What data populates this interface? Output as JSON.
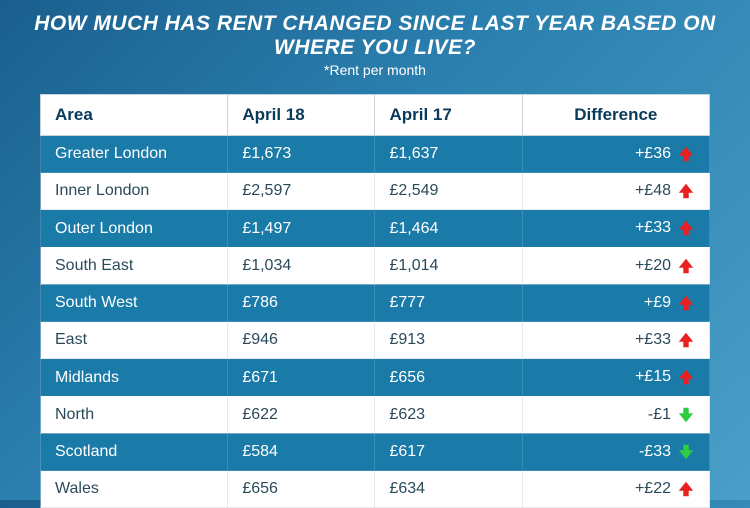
{
  "header": {
    "title": "HOW MUCH HAS RENT CHANGED SINCE LAST YEAR BASED ON WHERE YOU LIVE?",
    "subtitle": "*Rent per month"
  },
  "table": {
    "columns": [
      "Area",
      "April 18",
      "April 17",
      "Difference"
    ],
    "rows": [
      {
        "area": "Greater London",
        "v1": "£1,673",
        "v2": "£1,637",
        "diff": "+£36",
        "dir": "up"
      },
      {
        "area": "Inner London",
        "v1": "£2,597",
        "v2": "£2,549",
        "diff": "+£48",
        "dir": "up"
      },
      {
        "area": "Outer London",
        "v1": "£1,497",
        "v2": "£1,464",
        "diff": "+£33",
        "dir": "up"
      },
      {
        "area": "South East",
        "v1": "£1,034",
        "v2": "£1,014",
        "diff": "+£20",
        "dir": "up"
      },
      {
        "area": "South West",
        "v1": "£786",
        "v2": "£777",
        "diff": "+£9",
        "dir": "up"
      },
      {
        "area": "East",
        "v1": "£946",
        "v2": "£913",
        "diff": "+£33",
        "dir": "up"
      },
      {
        "area": "Midlands",
        "v1": "£671",
        "v2": "£656",
        "diff": "+£15",
        "dir": "up"
      },
      {
        "area": "North",
        "v1": "£622",
        "v2": "£623",
        "diff": "-£1",
        "dir": "down"
      },
      {
        "area": "Scotland",
        "v1": "£584",
        "v2": "£617",
        "diff": "-£33",
        "dir": "down"
      },
      {
        "area": "Wales",
        "v1": "£656",
        "v2": "£634",
        "diff": "+£22",
        "dir": "up"
      }
    ]
  },
  "style": {
    "up_arrow_color": "#e82020",
    "down_arrow_color": "#2ecc40",
    "row_dark_bg": "#1a7aa8",
    "row_light_bg": "#ffffff",
    "header_text_color": "#0a3a5a"
  }
}
